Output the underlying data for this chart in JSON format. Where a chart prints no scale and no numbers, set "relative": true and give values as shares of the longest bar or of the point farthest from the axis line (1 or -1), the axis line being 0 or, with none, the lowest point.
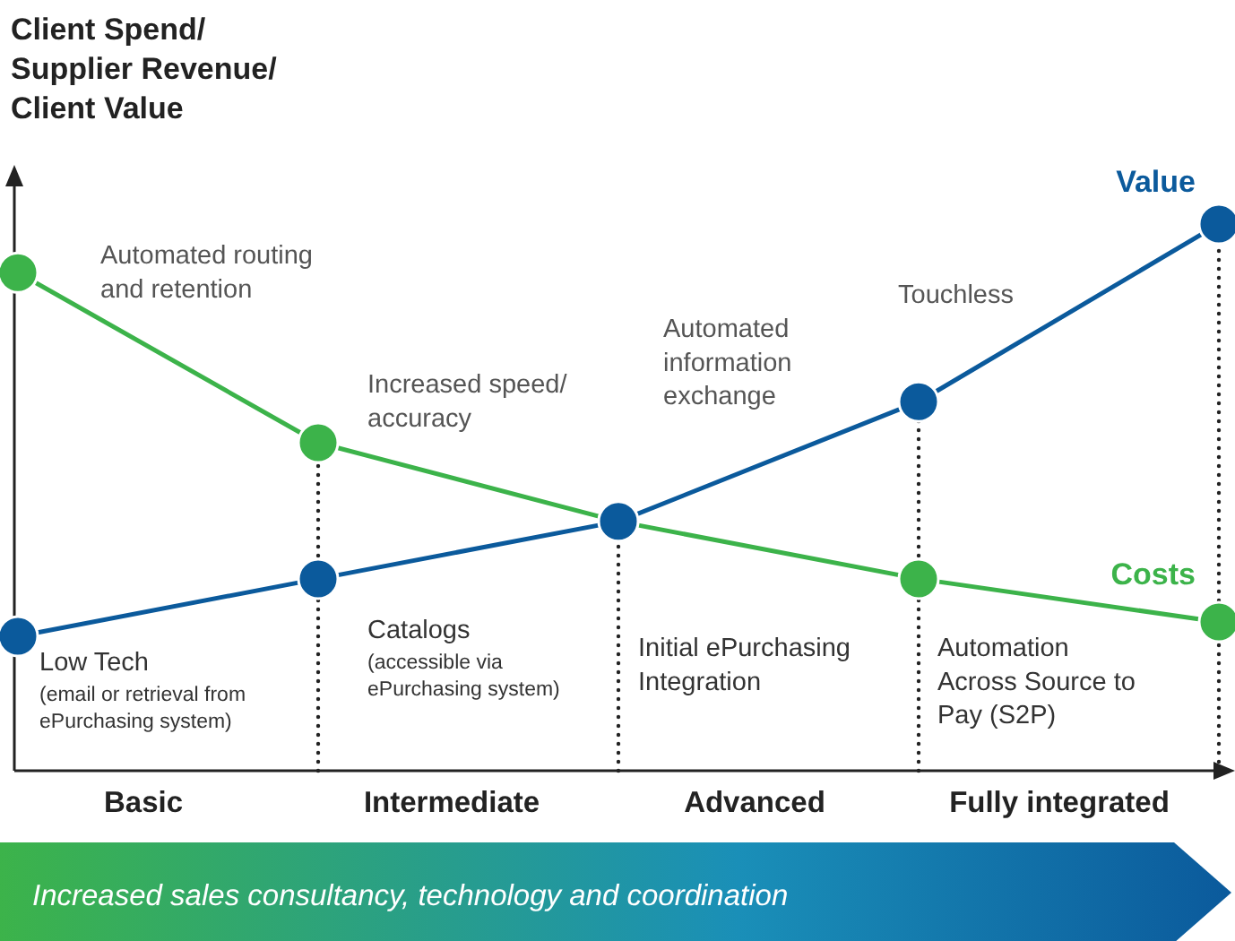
{
  "chart_data": {
    "type": "line",
    "relative": true,
    "ylabel": "Client Spend/\nSupplier Revenue/\nClient Value",
    "categories": [
      null,
      null,
      null,
      null,
      null
    ],
    "series": [
      {
        "name": "Costs",
        "color": "#3cb34a",
        "values": [
          0.911,
          0.6,
          0.456,
          0.351,
          0.272
        ]
      },
      {
        "name": "Value",
        "color": "#0b5a9c",
        "values": [
          0.246,
          0.351,
          0.456,
          0.675,
          1
        ]
      }
    ],
    "marker": "circle",
    "line_style": "solid",
    "annotations": [
      "Automated routing\nand retention",
      "Increased speed/\naccuracy",
      "Automated\ninformation\nexchange",
      "Touchless",
      "Low Tech",
      "(email or retrieval from\nePurchasing system)",
      "Catalogs",
      "(accessible via\nePurchasing system)",
      "Initial ePurchasing\nIntegration",
      "Automation\nAcross Source to\nPay (S2P)",
      "Basic",
      "Intermediate",
      "Advanced",
      "Fully integrated",
      "Increased sales consultancy, technology and coordination"
    ]
  }
}
